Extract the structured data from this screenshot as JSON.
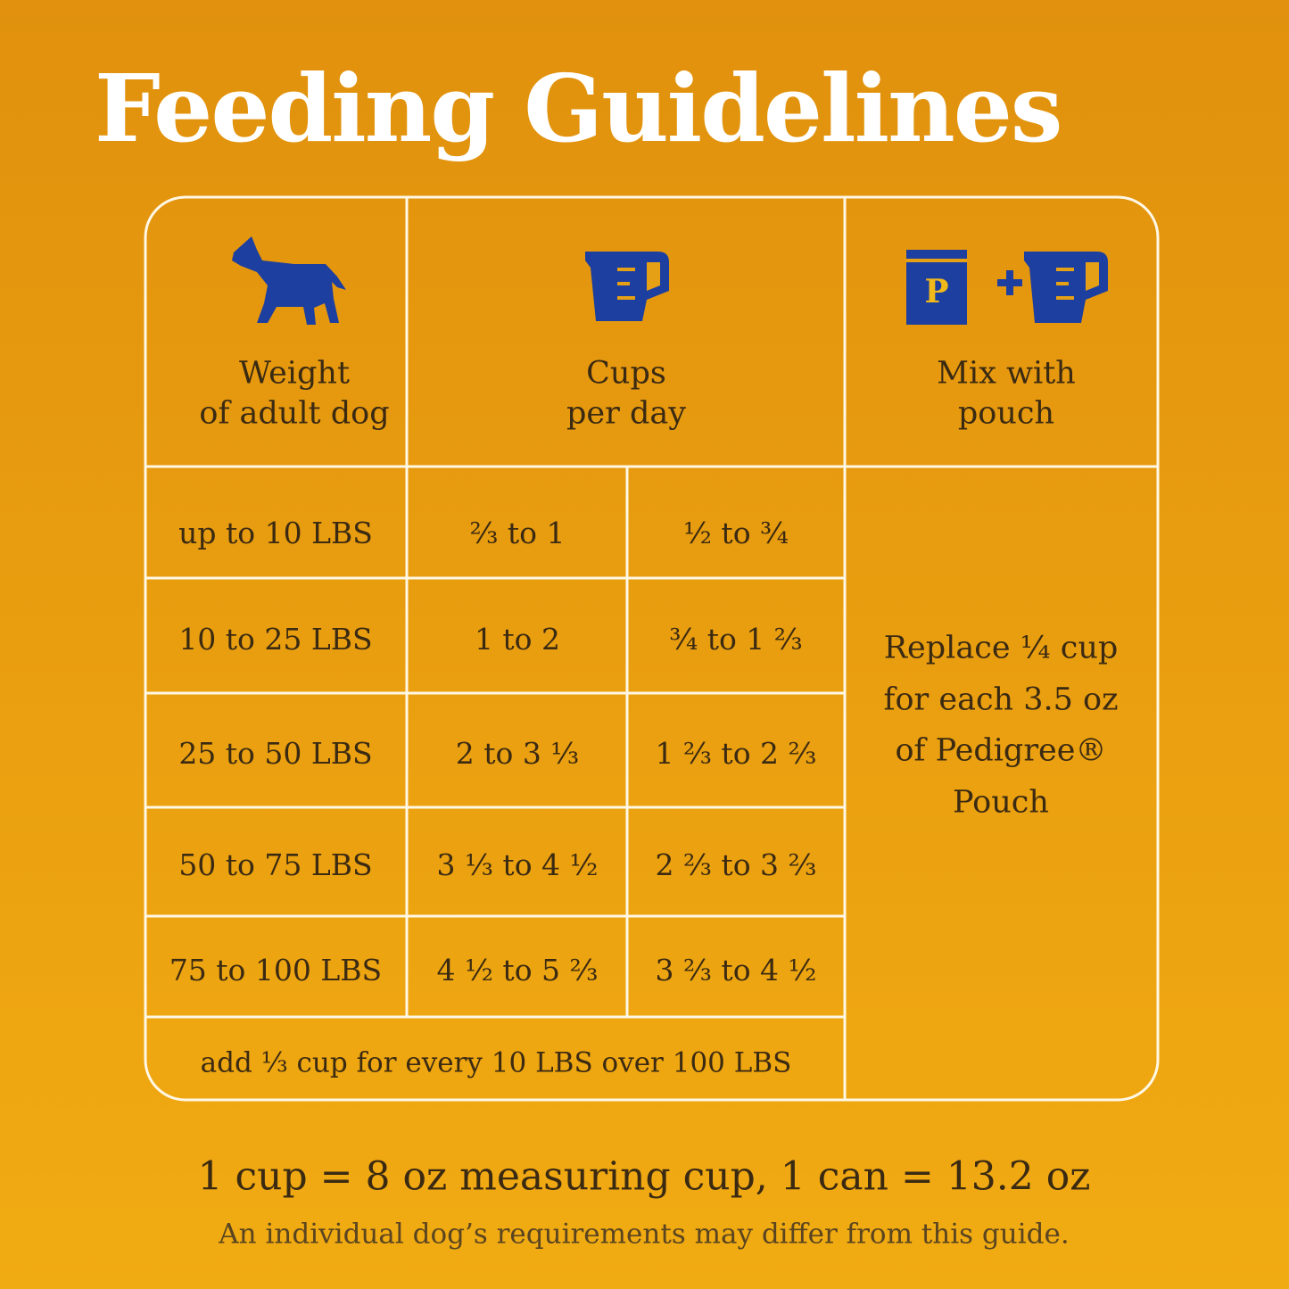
{
  "title": "Feeding Guidelines",
  "table": {
    "header": {
      "weight": [
        "Weight",
        "of adult dog"
      ],
      "cups": [
        "Cups",
        "per day"
      ],
      "mix": [
        "Mix with",
        "pouch"
      ],
      "pouch_icon": "P"
    },
    "rows": [
      [
        "up to 10 LBS",
        "²⁄₃ to 1",
        "¹⁄₂ to ³⁄₄"
      ],
      [
        "10 to 25 LBS",
        "1 to 2",
        "³⁄₄ to 1 ²⁄₃"
      ],
      [
        "25 to 50 LBS",
        "2 to 3 ¹⁄₃",
        "1 ²⁄₃ to 2 ²⁄₃"
      ],
      [
        "50 to 75 LBS",
        "3 ¹⁄₃ to 4 ¹⁄₂",
        "2 ²⁄₃ to 3 ²⁄₃"
      ],
      [
        "75 to 100 LBS",
        "4 ¹⁄₂ to 5 ²⁄₃",
        "3 ²⁄₃ to 4 ¹⁄₂"
      ]
    ],
    "footer_row": "add ¹⁄₃ cup for every 10 LBS over 100 LBS",
    "mix_note": [
      "Replace ¼ cup",
      "for each 3.5 oz",
      "of Pedigree®",
      "Pouch"
    ]
  },
  "footnote": {
    "conversion": "1 cup = 8 oz measuring cup, 1 can = 13.2 oz",
    "disclaimer": "An individual dog’s requirements may differ from this guide."
  }
}
